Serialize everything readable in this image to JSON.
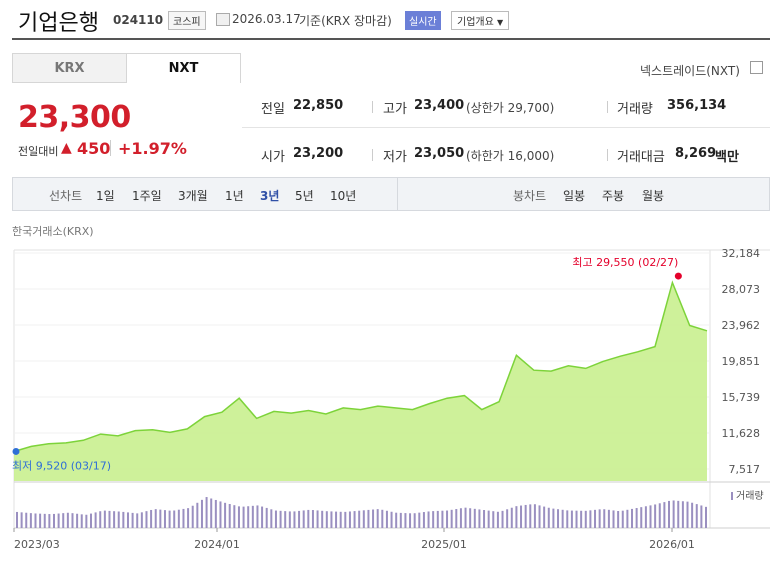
{
  "header": {
    "name": "기업은행",
    "code": "024110",
    "market": "코스피",
    "date": "2026.03.17",
    "basis": "기준(KRX 장마감)",
    "realtime": "실시간",
    "company_info": "기업개요"
  },
  "tabs": [
    "KRX",
    "NXT"
  ],
  "nextrade": "넥스트레이드(NXT)",
  "quote": {
    "price": "23,300",
    "change_label": "전일대비",
    "change": "450",
    "change_pct": "+1.97%",
    "prev_close_label": "전일",
    "prev_close": "22,850",
    "high_label": "고가",
    "high": "23,400",
    "upper_limit": "(상한가 29,700)",
    "volume_label": "거래량",
    "volume": "356,134",
    "open_label": "시가",
    "open": "23,200",
    "low_label": "저가",
    "low": "23,050",
    "lower_limit": "(하한가 16,000)",
    "amount_label": "거래대금",
    "amount": "8,269",
    "amount_unit": "백만"
  },
  "periods": {
    "line_label": "선차트",
    "line_items": [
      "1일",
      "1주일",
      "3개월",
      "1년",
      "3년",
      "5년",
      "10년"
    ],
    "active": "3년",
    "candle_label": "봉차트",
    "candle_items": [
      "일봉",
      "주봉",
      "월봉"
    ]
  },
  "colors": {
    "up": "#d21f2b",
    "line": "#7dd33a",
    "fill": "#c9ef8f",
    "volume": "#9a8fc0",
    "active_period": "#2f4fa6"
  },
  "chart_data": {
    "type": "area",
    "source": "한국거래소(KRX)",
    "x": [
      "2023/03/17",
      "2023/04",
      "2023/05",
      "2023/06",
      "2023/07",
      "2023/08",
      "2023/09",
      "2023/10",
      "2023/11",
      "2023/12",
      "2024/01",
      "2024/02",
      "2024/03",
      "2024/03/20",
      "2024/04",
      "2024/05",
      "2024/06",
      "2024/07",
      "2024/08",
      "2024/09",
      "2024/10",
      "2024/11",
      "2024/12",
      "2025/01",
      "2025/02",
      "2025/03",
      "2025/04",
      "2025/05",
      "2025/06",
      "2025/06/20",
      "2025/07",
      "2025/08",
      "2025/09",
      "2025/10",
      "2025/11",
      "2025/12",
      "2026/01",
      "2026/02",
      "2026/02/27",
      "2026/03",
      "2026/03/17"
    ],
    "series": [
      {
        "values": [
          9520,
          10100,
          10400,
          10500,
          10800,
          11500,
          11300,
          11900,
          12000,
          11700,
          12100,
          13500,
          14000,
          15600,
          13300,
          14100,
          13900,
          14200,
          13800,
          14500,
          14300,
          14700,
          14500,
          14300,
          15000,
          15600,
          15900,
          14300,
          15200,
          20500,
          18800,
          18700,
          19300,
          19000,
          19800,
          20400,
          20900,
          21500,
          28800,
          23900,
          23300
        ]
      }
    ],
    "volume": [
      44,
      40,
      38,
      42,
      36,
      48,
      45,
      40,
      52,
      47,
      55,
      85,
      70,
      58,
      62,
      48,
      45,
      50,
      46,
      44,
      48,
      52,
      42,
      40,
      46,
      48,
      56,
      50,
      44,
      60,
      66,
      54,
      48,
      47,
      52,
      46,
      55,
      64,
      76,
      72,
      58
    ],
    "yticks": [
      "32,184",
      "28,073",
      "23,962",
      "19,851",
      "15,739",
      "11,628",
      "7,517"
    ],
    "ylim": [
      7517,
      32184
    ],
    "xticks": [
      "2023/03",
      "2024/01",
      "2025/01",
      "2026/01"
    ],
    "max_label": "최고 29,550 (02/27)",
    "min_label": "최저 9,520 (03/17)",
    "volume_legend": "거래량"
  }
}
